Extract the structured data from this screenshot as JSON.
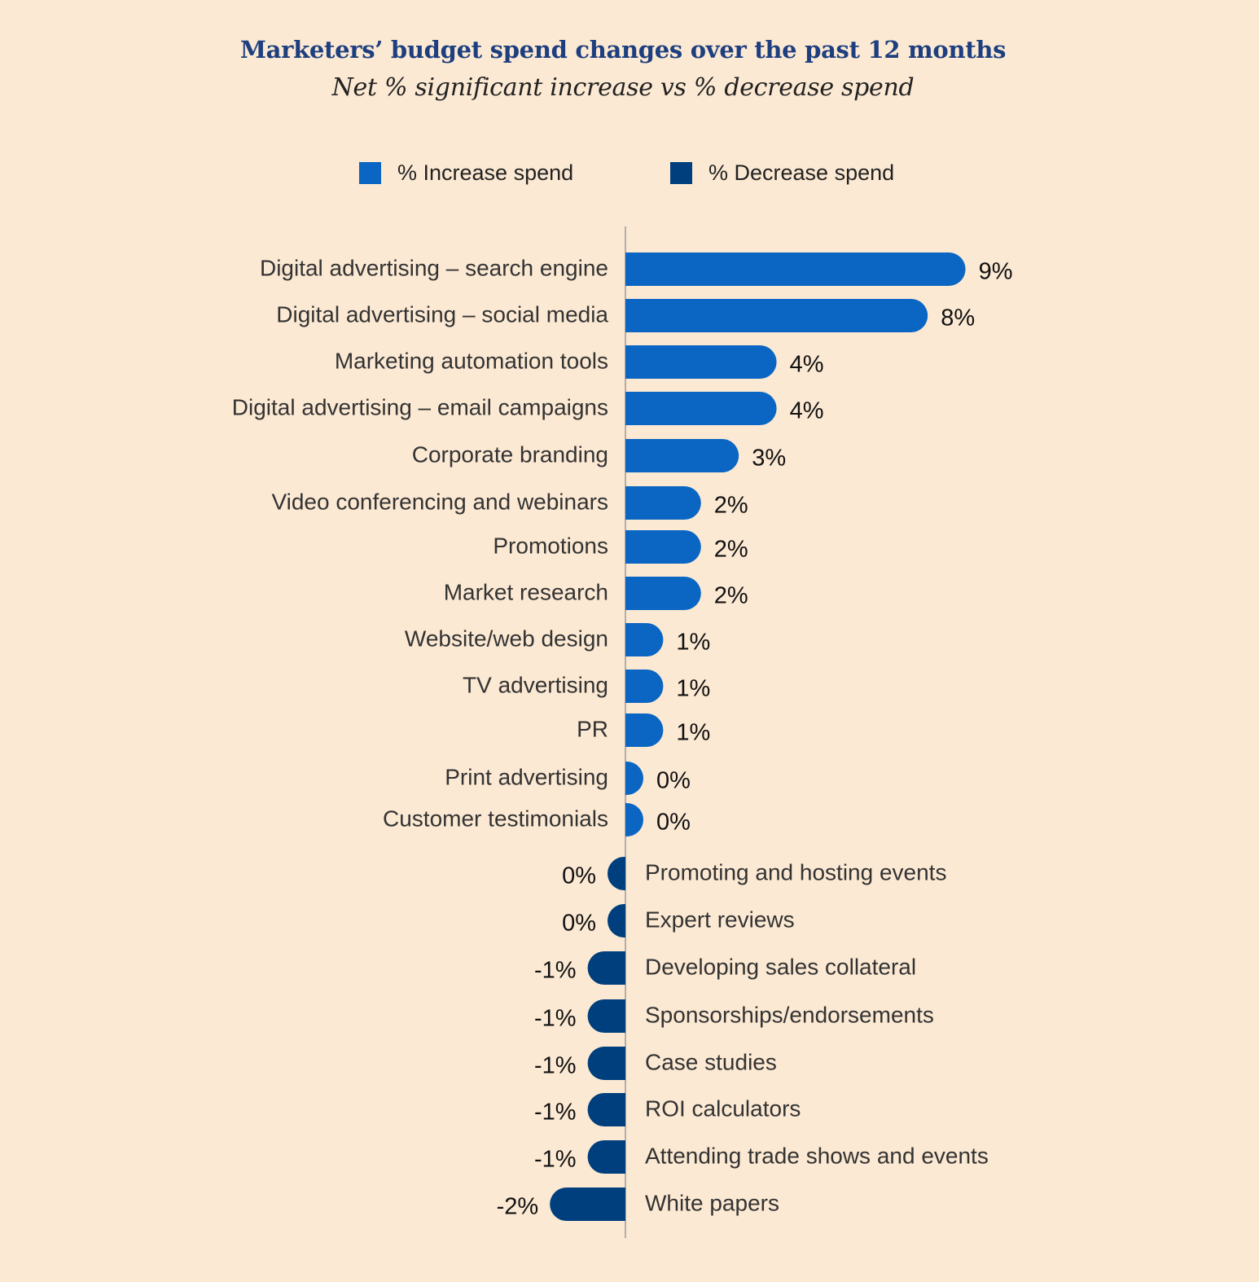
{
  "colors": {
    "background": "#fce9d3",
    "increase": "#0a66c2",
    "decrease": "#003f7d",
    "axis": "#9a9a9a",
    "title": "#1d3f7f"
  },
  "legend": {
    "increase_label": "% Increase spend",
    "decrease_label": "% Decrease spend"
  },
  "chart_data": {
    "type": "bar",
    "orientation": "horizontal",
    "title": "Marketers’ budget spend changes over the past 12 months",
    "subtitle": "Net % significant increase vs % decrease spend",
    "xlabel": "",
    "ylabel": "",
    "xlim": [
      -2,
      9
    ],
    "grid": false,
    "legend_position": "top",
    "unit": "%",
    "series": [
      {
        "name": "% Increase spend",
        "color": "#0a66c2"
      },
      {
        "name": "% Decrease spend",
        "color": "#003f7d"
      }
    ],
    "categories": [
      "Digital advertising – search engine",
      "Digital advertising – social media",
      "Marketing automation tools",
      "Digital advertising – email campaigns",
      "Corporate branding",
      "Video conferencing and webinars",
      "Promotions",
      "Market research",
      "Website/web design",
      "TV advertising",
      "PR",
      "Print advertising",
      "Customer testimonials",
      "Promoting and hosting events",
      "Expert reviews",
      "Developing sales collateral",
      "Sponsorships/endorsements",
      "Case studies",
      "ROI calculators",
      "Attending trade shows and events",
      "White papers"
    ],
    "values": [
      9,
      8,
      4,
      4,
      3,
      2,
      2,
      2,
      1,
      1,
      1,
      0,
      0,
      0,
      0,
      -1,
      -1,
      -1,
      -1,
      -1,
      -2
    ],
    "value_labels": [
      "9%",
      "8%",
      "4%",
      "4%",
      "3%",
      "2%",
      "2%",
      "2%",
      "1%",
      "1%",
      "1%",
      "0%",
      "0%",
      "0%",
      "0%",
      "-1%",
      "-1%",
      "-1%",
      "-1%",
      "-1%",
      "-2%"
    ],
    "series_membership": [
      "increase",
      "increase",
      "increase",
      "increase",
      "increase",
      "increase",
      "increase",
      "increase",
      "increase",
      "increase",
      "increase",
      "increase",
      "increase",
      "decrease",
      "decrease",
      "decrease",
      "decrease",
      "decrease",
      "decrease",
      "decrease",
      "decrease"
    ]
  }
}
